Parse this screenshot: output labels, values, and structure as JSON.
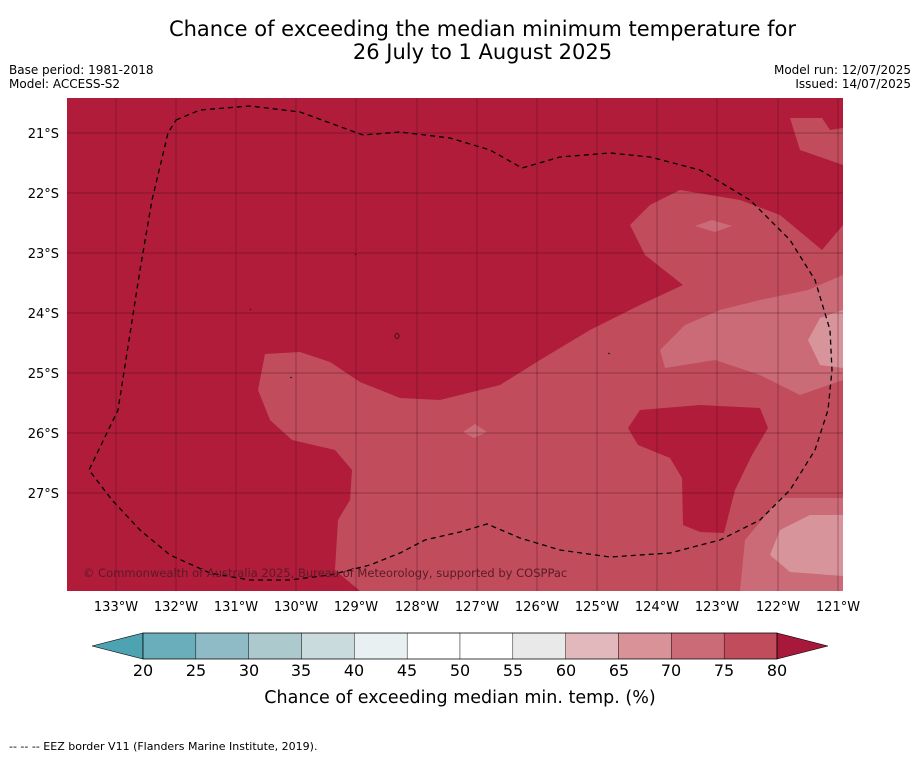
{
  "title": {
    "line1": "Chance of exceeding the median minimum temperature for",
    "line2": "26 July to 1 August 2025"
  },
  "meta": {
    "base_period": "Base period: 1981-2018",
    "model": "Model: ACCESS-S2",
    "model_run": "Model run: 12/07/2025",
    "issued": "Issued: 14/07/2025"
  },
  "map": {
    "lat_labels": [
      "21°S",
      "22°S",
      "23°S",
      "24°S",
      "25°S",
      "26°S",
      "27°S"
    ],
    "lon_labels": [
      "133°W",
      "132°W",
      "131°W",
      "130°W",
      "129°W",
      "128°W",
      "127°W",
      "126°W",
      "125°W",
      "124°W",
      "123°W",
      "122°W",
      "121°W"
    ],
    "lon_range": [
      -133.8,
      -120.9
    ],
    "lat_range": [
      -28.6,
      -20.6
    ],
    "copyright": "© Commonwealth of Australia 2025, Bureau of Meteorology, supported by COSPPac",
    "dominant_category": "> 80",
    "colors": {
      "gt80": "#b01c3a",
      "75_80": "#c14d5c",
      "70_75": "#cb6b78",
      "65_70": "#d7949b"
    }
  },
  "colorbar": {
    "ticks": [
      "20",
      "25",
      "30",
      "35",
      "40",
      "45",
      "50",
      "55",
      "60",
      "65",
      "70",
      "75",
      "80"
    ],
    "label": "Chance of exceeding median min. temp. (%)",
    "colors": [
      "#6aaebc",
      "#8ebbc5",
      "#acc9ce",
      "#cadbde",
      "#e9f0f2",
      "#ffffff",
      "#ffffff",
      "#e9e9e9",
      "#e2b8bd",
      "#d89298",
      "#cb6b78",
      "#c14d5c"
    ],
    "low_color": "#4ea3b2",
    "high_color": "#a8183a"
  },
  "footer": "--  --  -- EEZ border V11 (Flanders Marine Institute, 2019)."
}
